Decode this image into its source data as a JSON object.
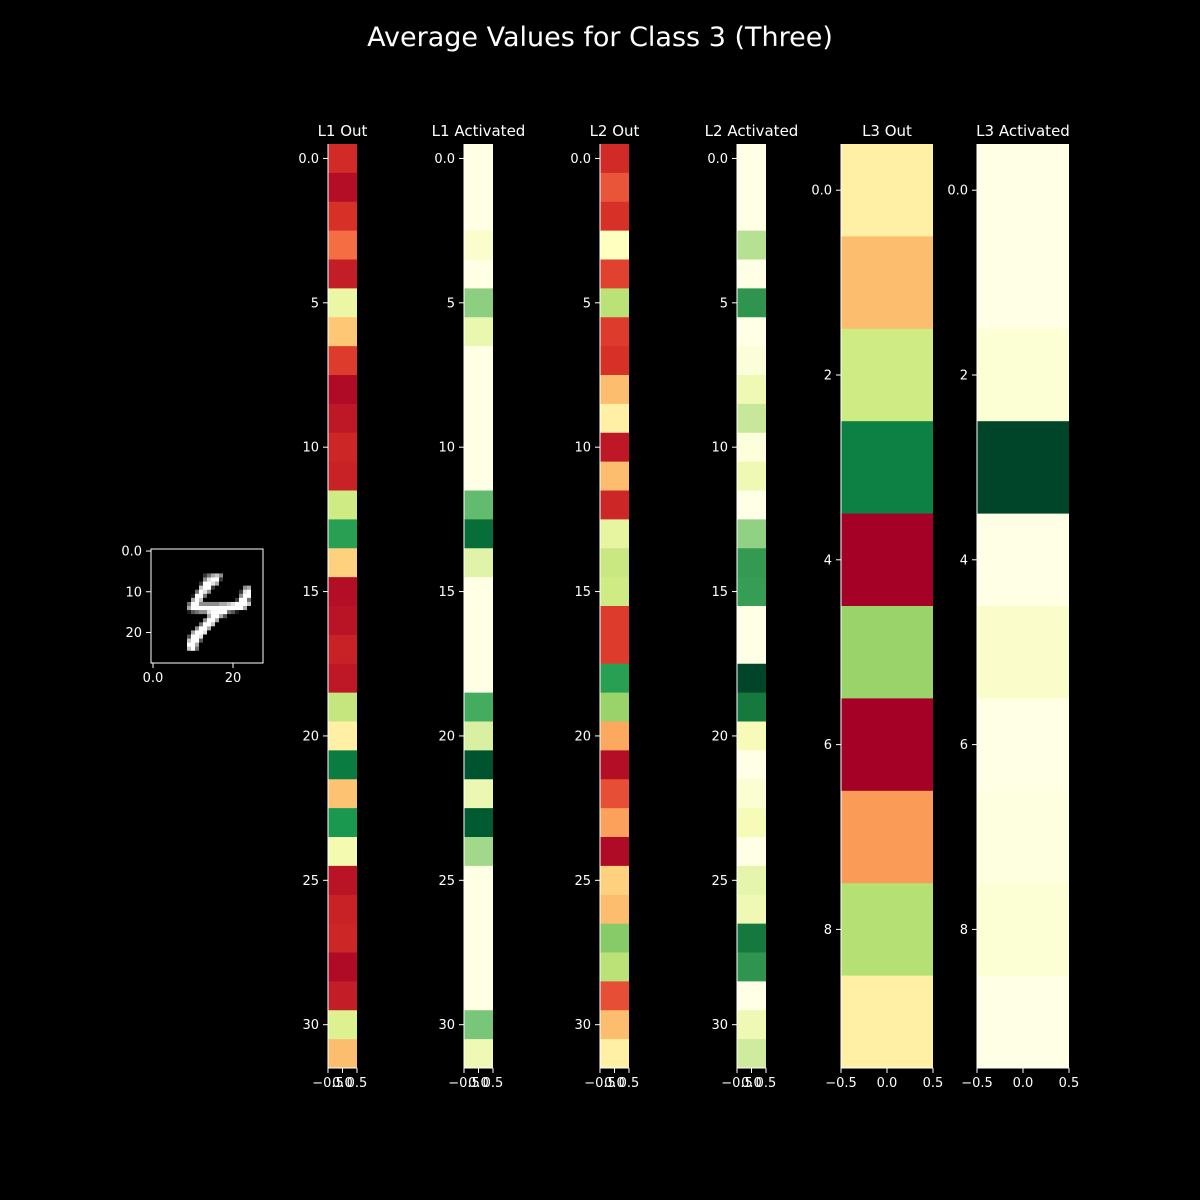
{
  "figure": {
    "title": "Average Values for Class 3 (Three)",
    "background": "#000000"
  },
  "chart_data": [
    {
      "type": "image",
      "title": "",
      "description_source": "28x28 grayscale input digit rendered in the original (handwritten 4)",
      "shape": [
        28,
        28
      ],
      "pixels": [
        "0000000000000000000000000000",
        "0000000000000000000000000000",
        "0000000000000000000000000000",
        "0000000000000000000000000000",
        "0000000000000000000000000000",
        "0000000000000000000000000000",
        "0000000000000246750000000000",
        "0000000000000589920000000000",
        "0000000000002998600000000000",
        "0000000000007992000000056000",
        "0000000000049850000000289000",
        "0000000000199400000000599000",
        "0000000000697000000002994000",
        "0000000004995555566789997000",
        "0000000006999999999999960000",
        "0000000001345589999431000000",
        "0000000000000069963000000000",
        "0000000000000599600000000000",
        "0000000000004997000000000000",
        "0000000000059960000000000000",
        "0000000000699800000000000000",
        "0000000003998000000000000000",
        "0000000007993000000000000000",
        "0000000009960000000000000000",
        "0000000007940000000000000000",
        "0000000000000000000000000000",
        "0000000000000000000000000000",
        "0000000000000000000000000000"
      ],
      "xticks": [
        0,
        20
      ],
      "yticks": [
        0,
        10,
        20
      ]
    },
    {
      "type": "heatmap",
      "title": "L1 Out",
      "colormap": "RdYlGn",
      "shape": [
        32,
        1
      ],
      "values": [
        0.09,
        0.03,
        0.1,
        0.2,
        0.06,
        0.55,
        0.35,
        0.12,
        0.02,
        0.05,
        0.08,
        0.07,
        0.62,
        0.88,
        0.37,
        0.03,
        0.04,
        0.07,
        0.05,
        0.64,
        0.45,
        0.96,
        0.34,
        0.9,
        0.53,
        0.04,
        0.07,
        0.08,
        0.02,
        0.06,
        0.59,
        0.33
      ],
      "xticks": [
        -0.5,
        0.0,
        0.5
      ],
      "yticks": [
        0,
        5,
        10,
        15,
        20,
        25,
        30
      ]
    },
    {
      "type": "heatmap",
      "title": "L1 Activated",
      "colormap": "YlGn",
      "shape": [
        32,
        1
      ],
      "values": [
        0.0,
        0.0,
        0.0,
        0.07,
        0.0,
        0.45,
        0.18,
        0.0,
        0.0,
        0.0,
        0.0,
        0.0,
        0.55,
        0.85,
        0.22,
        0.0,
        0.0,
        0.0,
        0.0,
        0.62,
        0.25,
        0.95,
        0.17,
        0.92,
        0.4,
        0.0,
        0.0,
        0.0,
        0.0,
        0.0,
        0.5,
        0.16
      ],
      "xticks": [
        -0.5,
        0.0,
        0.5
      ],
      "yticks": [
        0,
        5,
        10,
        15,
        20,
        25,
        30
      ]
    },
    {
      "type": "heatmap",
      "title": "L2 Out",
      "colormap": "RdYlGn",
      "shape": [
        32,
        1
      ],
      "values": [
        0.09,
        0.16,
        0.1,
        0.5,
        0.13,
        0.66,
        0.12,
        0.1,
        0.33,
        0.45,
        0.05,
        0.33,
        0.08,
        0.56,
        0.63,
        0.62,
        0.12,
        0.12,
        0.88,
        0.72,
        0.29,
        0.03,
        0.15,
        0.28,
        0.02,
        0.37,
        0.33,
        0.75,
        0.66,
        0.15,
        0.33,
        0.45
      ],
      "xticks": [
        -0.5,
        0.0,
        0.5
      ],
      "yticks": [
        0,
        5,
        10,
        15,
        20,
        25,
        30
      ]
    },
    {
      "type": "heatmap",
      "title": "L2 Activated",
      "colormap": "YlGn",
      "shape": [
        32,
        1
      ],
      "values": [
        0.0,
        0.0,
        0.0,
        0.35,
        0.0,
        0.7,
        0.0,
        0.04,
        0.16,
        0.3,
        0.03,
        0.16,
        0.0,
        0.44,
        0.68,
        0.67,
        0.0,
        0.0,
        1.0,
        0.8,
        0.13,
        0.0,
        0.06,
        0.13,
        0.0,
        0.2,
        0.16,
        0.8,
        0.7,
        0.0,
        0.16,
        0.28
      ],
      "xticks": [
        -0.5,
        0.0,
        0.5
      ],
      "yticks": [
        0,
        5,
        10,
        15,
        20,
        25,
        30
      ]
    },
    {
      "type": "heatmap",
      "title": "L3 Out",
      "colormap": "RdYlGn",
      "shape": [
        10,
        1
      ],
      "values": [
        0.45,
        0.33,
        0.62,
        0.95,
        0.0,
        0.72,
        0.0,
        0.27,
        0.67,
        0.45
      ],
      "xticks": [
        -0.5,
        0.0,
        0.5
      ],
      "yticks": [
        0,
        2,
        4,
        6,
        8
      ]
    },
    {
      "type": "heatmap",
      "title": "L3 Activated",
      "colormap": "YlGn",
      "shape": [
        10,
        1
      ],
      "values": [
        0.0,
        0.0,
        0.05,
        1.0,
        0.0,
        0.08,
        0.0,
        0.02,
        0.05,
        0.0
      ],
      "xticks": [
        -0.5,
        0.0,
        0.5
      ],
      "yticks": [
        0,
        2,
        4,
        6,
        8
      ]
    }
  ]
}
